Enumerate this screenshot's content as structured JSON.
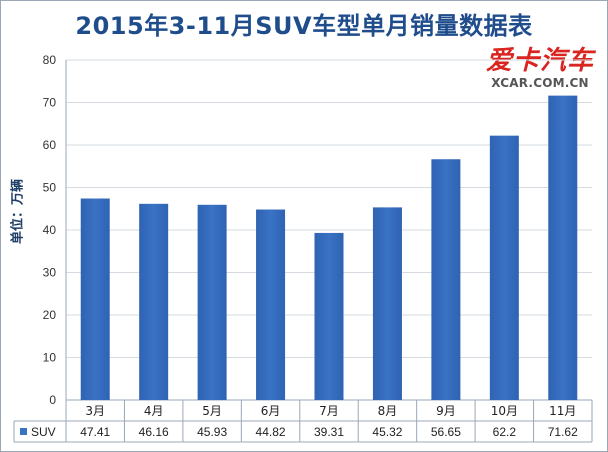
{
  "chart_data": {
    "type": "bar",
    "title": "2015年3-11月SUV车型单月销量数据表",
    "ylabel": "单位：万辆",
    "xlabel": "",
    "categories": [
      "3月",
      "4月",
      "5月",
      "6月",
      "7月",
      "8月",
      "9月",
      "10月",
      "11月"
    ],
    "series": [
      {
        "name": "SUV",
        "values": [
          47.41,
          46.16,
          45.93,
          44.82,
          39.31,
          45.32,
          56.65,
          62.2,
          71.62
        ],
        "color": "#3a72c4"
      }
    ],
    "ylim": [
      0,
      80
    ],
    "yticks": [
      0,
      10,
      20,
      30,
      40,
      50,
      60,
      70,
      80
    ],
    "grid": true,
    "legend": "data-table"
  },
  "logo": {
    "mark": "爱卡汽车",
    "url": "XCAR.COM.CN"
  }
}
